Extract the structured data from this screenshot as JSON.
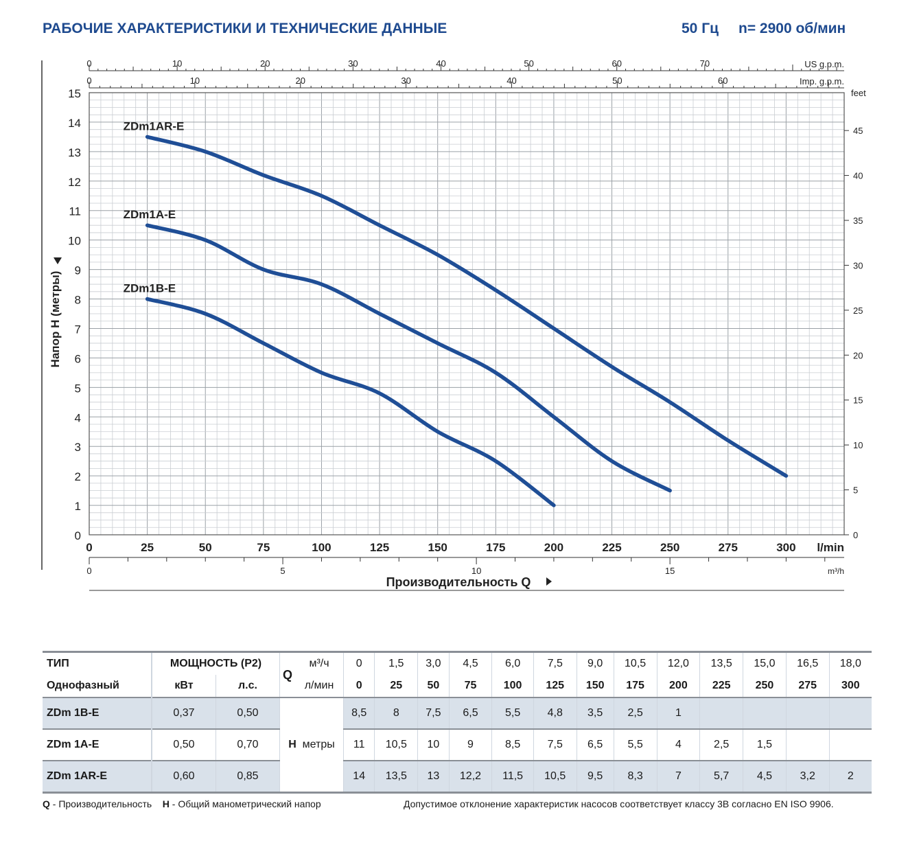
{
  "header": {
    "title": "РАБОЧИЕ ХАРАКТЕРИСТИКИ И ТЕХНИЧЕСКИЕ ДАННЫЕ",
    "freq": "50 Гц",
    "speed": "n= 2900 об/мин"
  },
  "chart_data": {
    "type": "line",
    "ylabel": "Напор H (метры)",
    "xlabel": "Производительность Q",
    "x_unit": "l/min",
    "right_unit": "feet",
    "top1_unit": "US g.p.m.",
    "top2_unit": "Imp. g.p.m.",
    "bottom2_unit": "m³/h",
    "xlim": [
      0,
      325
    ],
    "ylim": [
      0,
      15
    ],
    "x_ticks": [
      "0",
      "25",
      "50",
      "75",
      "100",
      "125",
      "150",
      "175",
      "200",
      "225",
      "250",
      "275",
      "300"
    ],
    "y_ticks": [
      "0",
      "1",
      "2",
      "3",
      "4",
      "5",
      "6",
      "7",
      "8",
      "9",
      "10",
      "11",
      "12",
      "13",
      "14",
      "15"
    ],
    "feet_ticks": [
      "0",
      "5",
      "10",
      "15",
      "20",
      "25",
      "30",
      "35",
      "40",
      "45"
    ],
    "us_gpm_ticks": [
      "0",
      "10",
      "20",
      "30",
      "40",
      "50",
      "60",
      "70"
    ],
    "imp_gpm_ticks": [
      "0",
      "10",
      "20",
      "30",
      "40",
      "50",
      "60"
    ],
    "m3h_ticks": [
      "0",
      "5",
      "10",
      "15"
    ],
    "series": [
      {
        "name": "ZDm1AR-E",
        "x": [
          25,
          50,
          75,
          100,
          125,
          150,
          175,
          200,
          225,
          250,
          275,
          300
        ],
        "y": [
          13.5,
          13,
          12.2,
          11.5,
          10.5,
          9.5,
          8.3,
          7,
          5.7,
          4.5,
          3.2,
          2
        ]
      },
      {
        "name": "ZDm1A-E",
        "x": [
          25,
          50,
          75,
          100,
          125,
          150,
          175,
          200,
          225,
          250
        ],
        "y": [
          10.5,
          10,
          9,
          8.5,
          7.5,
          6.5,
          5.5,
          4,
          2.5,
          1.5
        ]
      },
      {
        "name": "ZDm1B-E",
        "x": [
          25,
          50,
          75,
          100,
          125,
          150,
          175,
          200
        ],
        "y": [
          8,
          7.5,
          6.5,
          5.5,
          4.8,
          3.5,
          2.5,
          1
        ]
      }
    ]
  },
  "table": {
    "type_label": "ТИП",
    "phase_label": "Однофазный",
    "power_label": "МОЩНОСТЬ (P2)",
    "kw_label": "кВт",
    "hp_label": "л.с.",
    "q_label": "Q",
    "q_unit1": "м³/ч",
    "q_unit2": "л/мин",
    "h_label": "H",
    "h_unit": "метры",
    "q_m3h": [
      "0",
      "1,5",
      "3,0",
      "4,5",
      "6,0",
      "7,5",
      "9,0",
      "10,5",
      "12,0",
      "13,5",
      "15,0",
      "16,5",
      "18,0"
    ],
    "q_lmin": [
      "0",
      "25",
      "50",
      "75",
      "100",
      "125",
      "150",
      "175",
      "200",
      "225",
      "250",
      "275",
      "300"
    ],
    "rows": [
      {
        "model": "ZDm 1B-E",
        "kw": "0,37",
        "hp": "0,50",
        "h": [
          "8,5",
          "8",
          "7,5",
          "6,5",
          "5,5",
          "4,8",
          "3,5",
          "2,5",
          "1",
          "",
          "",
          "",
          ""
        ]
      },
      {
        "model": "ZDm 1A-E",
        "kw": "0,50",
        "hp": "0,70",
        "h": [
          "11",
          "10,5",
          "10",
          "9",
          "8,5",
          "7,5",
          "6,5",
          "5,5",
          "4",
          "2,5",
          "1,5",
          "",
          ""
        ]
      },
      {
        "model": "ZDm 1AR-E",
        "kw": "0,60",
        "hp": "0,85",
        "h": [
          "14",
          "13,5",
          "13",
          "12,2",
          "11,5",
          "10,5",
          "9,5",
          "8,3",
          "7",
          "5,7",
          "4,5",
          "3,2",
          "2"
        ]
      }
    ]
  },
  "footer": {
    "q_key": "Q",
    "q_text": " - Производительность",
    "h_key": "H",
    "h_text": " - Общий манометрический напор",
    "note": "Допустимое отклонение характеристик насосов соответствует классу 3B согласно EN ISO 9906."
  }
}
